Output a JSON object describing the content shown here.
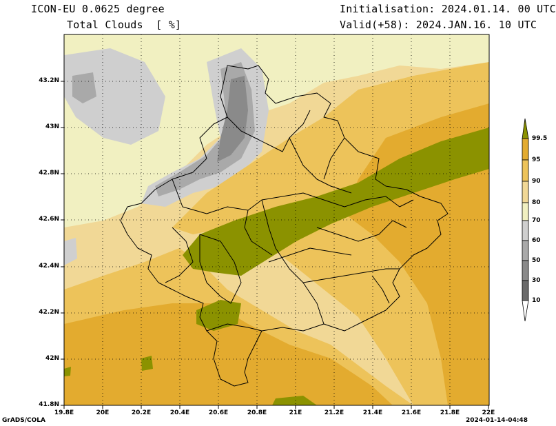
{
  "header": {
    "model": "ICON-EU 0.0625 degree",
    "variable": "Total Clouds  [ %]",
    "init": "Initialisation: 2024.01.14. 00 UTC",
    "valid": "Valid(+58): 2024.JAN.16. 10 UTC"
  },
  "footer": {
    "credit": "GrADS/COLA",
    "timestamp": "2024-01-14-04:48"
  },
  "axes": {
    "lon_ticks": [
      "19.8E",
      "20E",
      "20.2E",
      "20.4E",
      "20.6E",
      "20.8E",
      "21E",
      "21.2E",
      "21.4E",
      "21.6E",
      "21.8E",
      "22E"
    ],
    "lat_ticks": [
      "43.2N",
      "43N",
      "42.8N",
      "42.6N",
      "42.4N",
      "42.2N",
      "42N",
      "41.8N"
    ]
  },
  "colorbar": {
    "levels": [
      "99.5",
      "95",
      "90",
      "80",
      "70",
      "60",
      "50",
      "30",
      "10"
    ],
    "colors": [
      "#8b9200",
      "#e3ab2f",
      "#edc35a",
      "#f1d896",
      "#f1f0c1",
      "#cfcfcf",
      "#a9a9a9",
      "#8a8a8a",
      "#6a6a6a",
      "#ffffff"
    ]
  }
}
